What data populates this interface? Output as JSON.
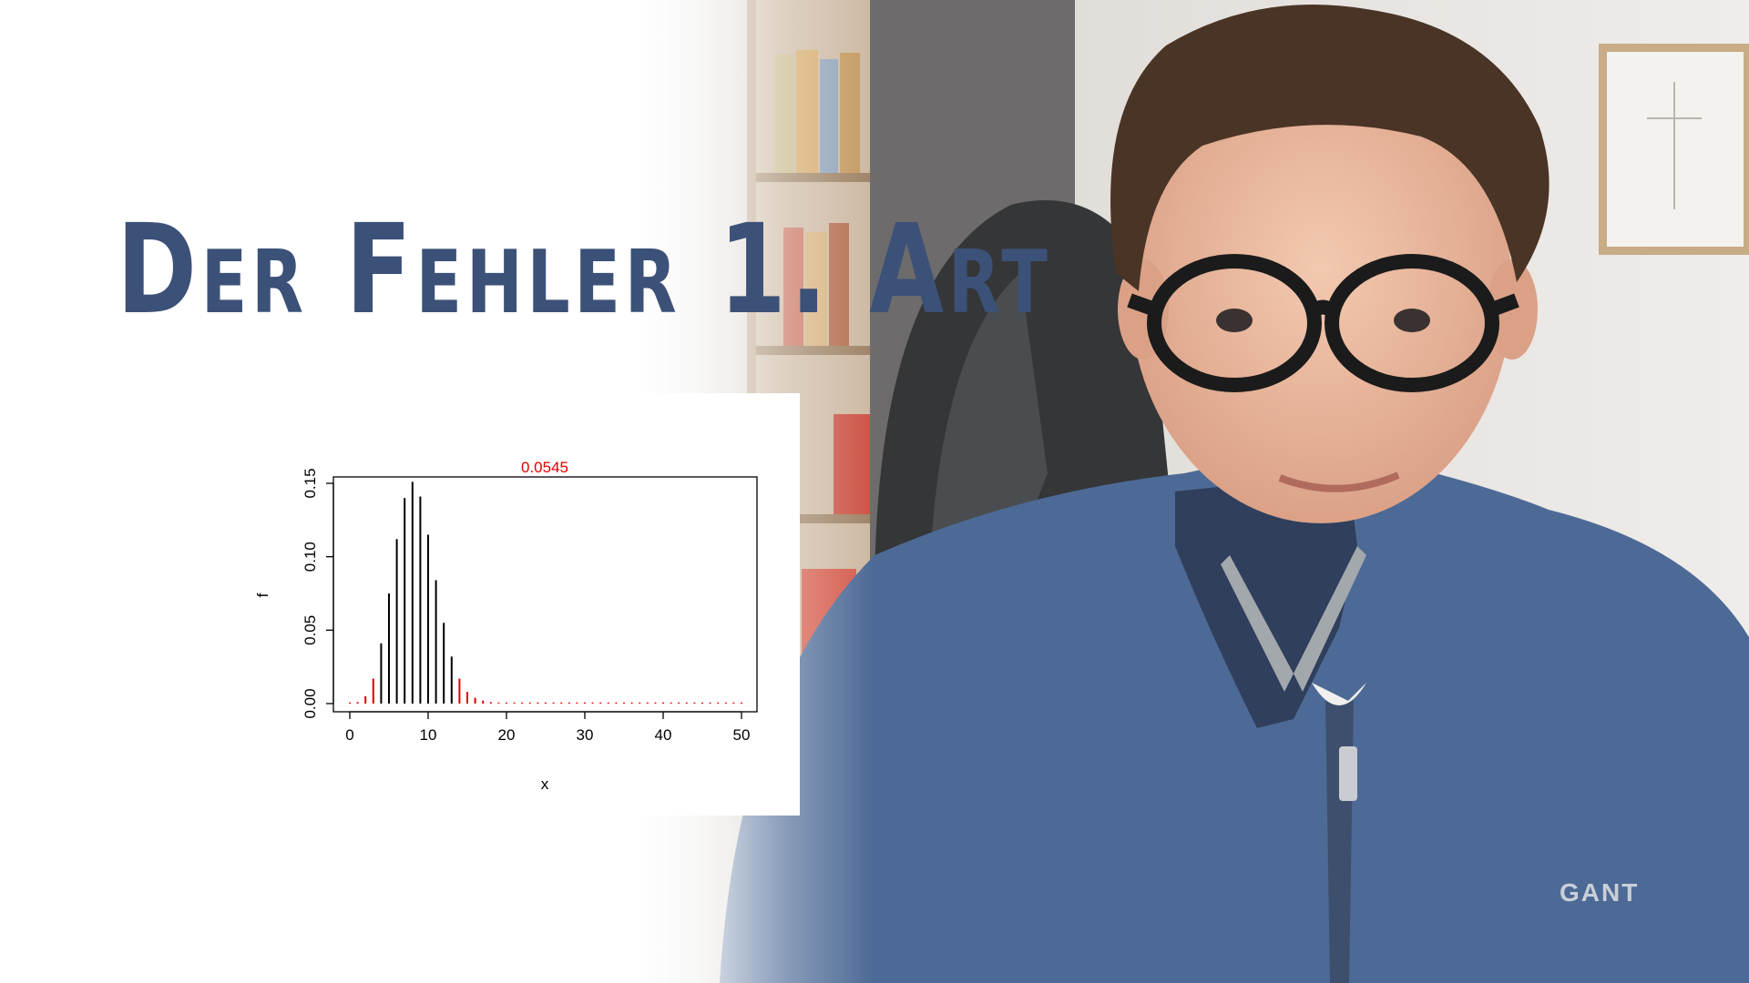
{
  "title": "Der Fehler 1. Art",
  "colors": {
    "title": "#3c5177",
    "bar_normal": "#000000",
    "bar_critical": "#e00000",
    "sweater": "#4d6a96",
    "wall": "#e9e6e2"
  },
  "person": {
    "sweater_logo": "GANT"
  },
  "chart_data": {
    "type": "bar",
    "title": "0.0545",
    "xlabel": "x",
    "ylabel": "f",
    "xlim": [
      0,
      50
    ],
    "ylim": [
      0,
      0.15
    ],
    "xticks": [
      "0",
      "10",
      "20",
      "30",
      "40",
      "50"
    ],
    "yticks": [
      "0.00",
      "0.05",
      "0.10",
      "0.15"
    ],
    "x": [
      0,
      1,
      2,
      3,
      4,
      5,
      6,
      7,
      8,
      9,
      10,
      11,
      12,
      13,
      14,
      15,
      16,
      17,
      18,
      19,
      20,
      21,
      22,
      23,
      24,
      25,
      26,
      27,
      28,
      29,
      30,
      31,
      32,
      33,
      34,
      35,
      36,
      37,
      38,
      39,
      40,
      41,
      42,
      43,
      44,
      45,
      46,
      47,
      48,
      49,
      50
    ],
    "values": [
      0.0001,
      0.001,
      0.005,
      0.017,
      0.041,
      0.075,
      0.112,
      0.14,
      0.151,
      0.141,
      0.115,
      0.084,
      0.055,
      0.032,
      0.017,
      0.008,
      0.004,
      0.002,
      0.001,
      0,
      0,
      0,
      0,
      0,
      0,
      0,
      0,
      0,
      0,
      0,
      0,
      0,
      0,
      0,
      0,
      0,
      0,
      0,
      0,
      0,
      0,
      0,
      0,
      0,
      0,
      0,
      0,
      0,
      0,
      0,
      0
    ],
    "critical": [
      true,
      true,
      true,
      true,
      false,
      false,
      false,
      false,
      false,
      false,
      false,
      false,
      false,
      false,
      true,
      true,
      true,
      true,
      true,
      true,
      true,
      true,
      true,
      true,
      true,
      true,
      true,
      true,
      true,
      true,
      true,
      true,
      true,
      true,
      true,
      true,
      true,
      true,
      true,
      true,
      true,
      true,
      true,
      true,
      true,
      true,
      true,
      true,
      true,
      true,
      true
    ]
  }
}
